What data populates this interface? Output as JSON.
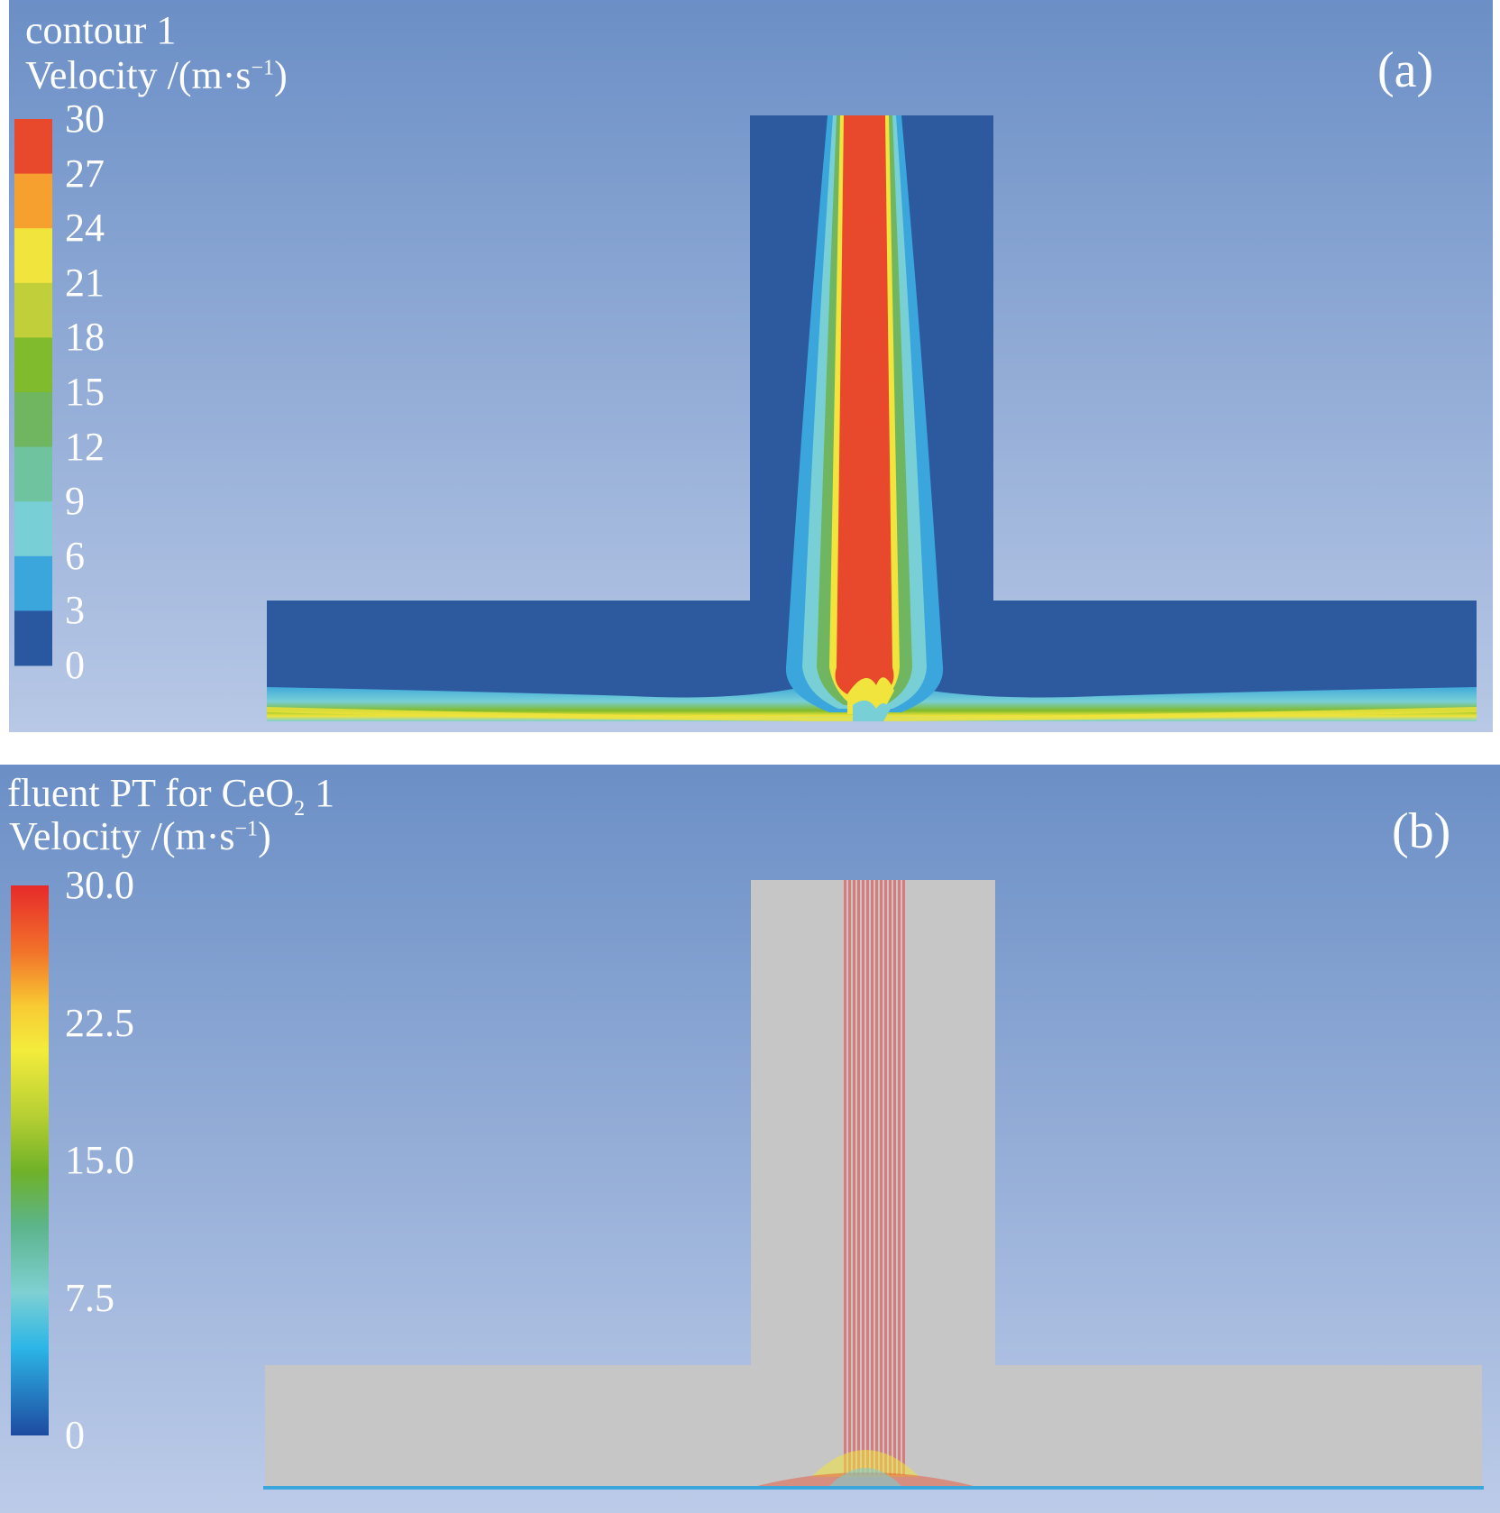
{
  "panel_a": {
    "tag": "(a)",
    "title_line1": "contour 1",
    "title_line2_prefix": "Velocity /(m·s",
    "title_line2_sup": "−1",
    "title_line2_suffix": ")",
    "legend_ticks": [
      "30",
      "27",
      "24",
      "21",
      "18",
      "15",
      "12",
      "9",
      "6",
      "3",
      "0"
    ],
    "legend_bands": [
      "#e8492c",
      "#f6a030",
      "#f1e43c",
      "#c1d03a",
      "#7fbb2c",
      "#70b660",
      "#6fc39e",
      "#79cfd6",
      "#3aa6dc",
      "#2958a0"
    ],
    "geometry_color": "#2d599f",
    "jet_color": "#e8492c"
  },
  "panel_b": {
    "tag": "(b)",
    "title_line1_prefix": "fluent PT for CeO",
    "title_line1_sub": "2",
    "title_line1_suffix": " 1",
    "title_line2_prefix": "Velocity /(m·s",
    "title_line2_sup": "−1",
    "title_line2_suffix": ")",
    "legend_ticks": [
      "30.0",
      "22.5",
      "15.0",
      "7.5",
      "0"
    ],
    "geometry_color": "#c6c6c6",
    "streamline_color": "#e06060"
  },
  "chart_data": {
    "type": "heatmap",
    "colorbar_a": {
      "min": 0,
      "max": 30,
      "step": 3
    },
    "colorbar_b": {
      "min": 0,
      "max": 30.0,
      "step": 7.5
    }
  }
}
